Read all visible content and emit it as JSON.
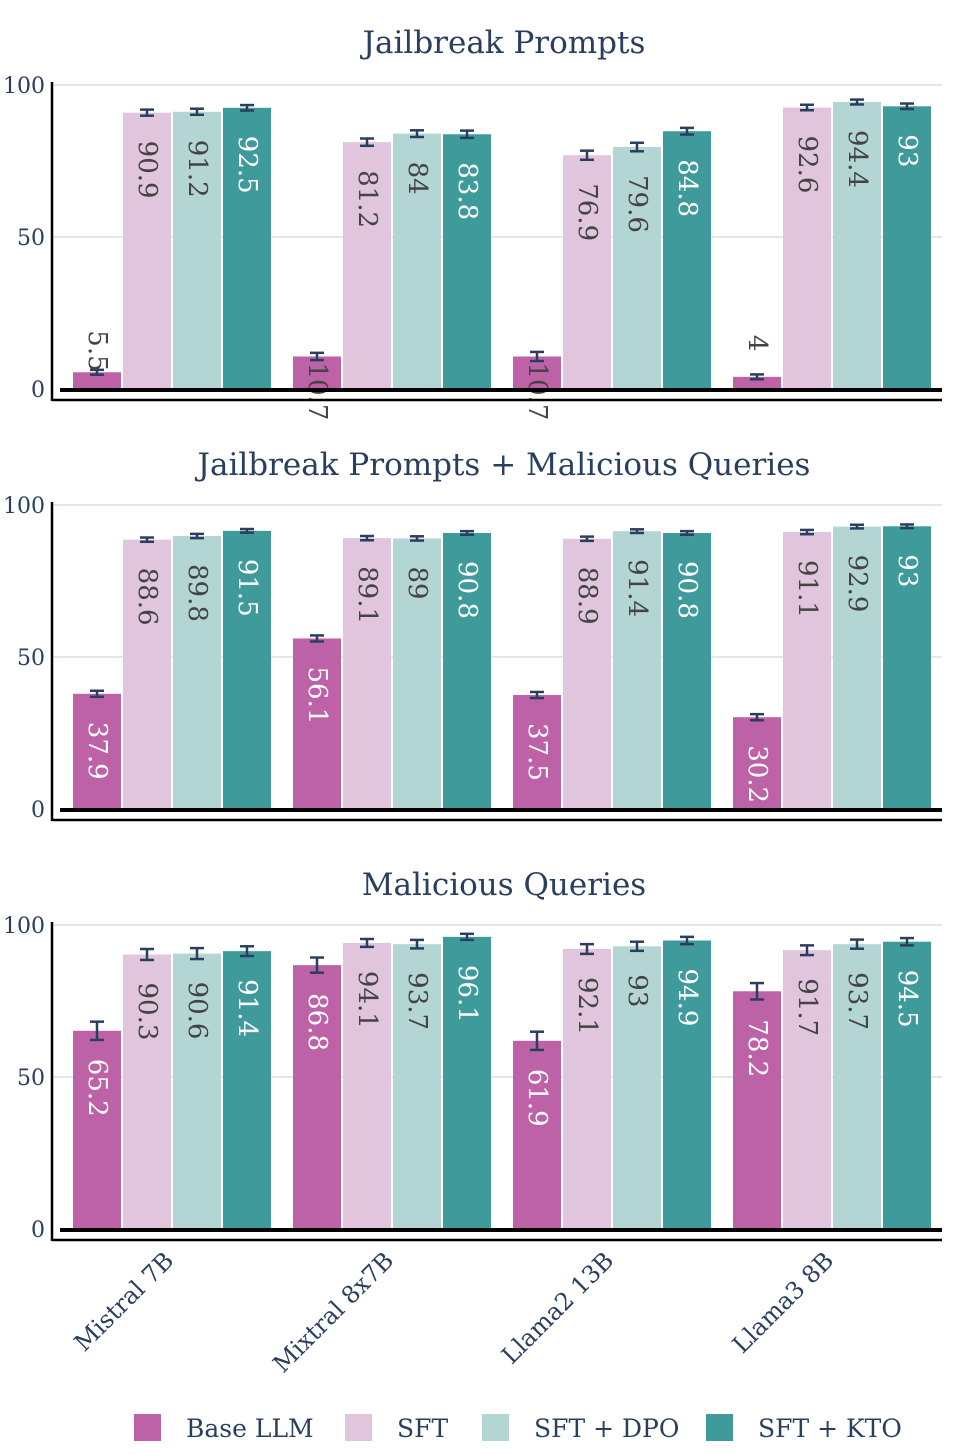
{
  "chart_data": {
    "type": "bar",
    "categories": [
      "Mistral 7B",
      "Mixtral 8x7B",
      "Llama2 13B",
      "Llama3 8B"
    ],
    "series_names": [
      "Base LLM",
      "SFT",
      "SFT + DPO",
      "SFT + KTO"
    ],
    "colors": {
      "Base LLM": "#bd62a6",
      "SFT": "#e0c5dd",
      "SFT + DPO": "#b3d6d5",
      "SFT + KTO": "#3f9b9b"
    },
    "ylim": [
      0,
      100
    ],
    "yticks": [
      0,
      50,
      100
    ],
    "grid": true,
    "legend_position": "bottom",
    "panels": [
      {
        "title": "Jailbreak Prompts",
        "values": {
          "Base LLM": [
            5.5,
            10.7,
            10.7,
            4
          ],
          "SFT": [
            90.9,
            81.2,
            76.9,
            92.6
          ],
          "SFT + DPO": [
            91.2,
            84,
            79.6,
            94.4
          ],
          "SFT + KTO": [
            92.5,
            83.8,
            84.8,
            93
          ]
        },
        "errors": {
          "Base LLM": [
            0.8,
            1.2,
            1.5,
            0.8
          ],
          "SFT": [
            1.0,
            1.2,
            1.5,
            0.9
          ],
          "SFT + DPO": [
            1.0,
            1.1,
            1.4,
            0.8
          ],
          "SFT + KTO": [
            0.9,
            1.2,
            1.1,
            0.9
          ]
        }
      },
      {
        "title": "Jailbreak Prompts + Malicious Queries",
        "values": {
          "Base LLM": [
            37.9,
            56.1,
            37.5,
            30.2
          ],
          "SFT": [
            88.6,
            89.1,
            88.9,
            91.1
          ],
          "SFT + DPO": [
            89.8,
            89,
            91.4,
            92.9
          ],
          "SFT + KTO": [
            91.5,
            90.8,
            90.8,
            93
          ]
        },
        "errors": {
          "Base LLM": [
            1.0,
            1.0,
            1.0,
            1.0
          ],
          "SFT": [
            0.7,
            0.7,
            0.7,
            0.7
          ],
          "SFT + DPO": [
            0.7,
            0.7,
            0.6,
            0.6
          ],
          "SFT + KTO": [
            0.6,
            0.6,
            0.6,
            0.6
          ]
        }
      },
      {
        "title": "Malicious Queries",
        "values": {
          "Base LLM": [
            65.2,
            86.8,
            61.9,
            78.2
          ],
          "SFT": [
            90.3,
            94.1,
            92.1,
            91.7
          ],
          "SFT + DPO": [
            90.6,
            93.7,
            93,
            93.7
          ],
          "SFT + KTO": [
            91.4,
            96.1,
            94.9,
            94.5
          ]
        },
        "errors": {
          "Base LLM": [
            3.0,
            2.5,
            3.0,
            2.7
          ],
          "SFT": [
            1.8,
            1.3,
            1.6,
            1.6
          ],
          "SFT + DPO": [
            1.8,
            1.4,
            1.5,
            1.5
          ],
          "SFT + KTO": [
            1.6,
            1.0,
            1.2,
            1.2
          ]
        }
      }
    ]
  }
}
